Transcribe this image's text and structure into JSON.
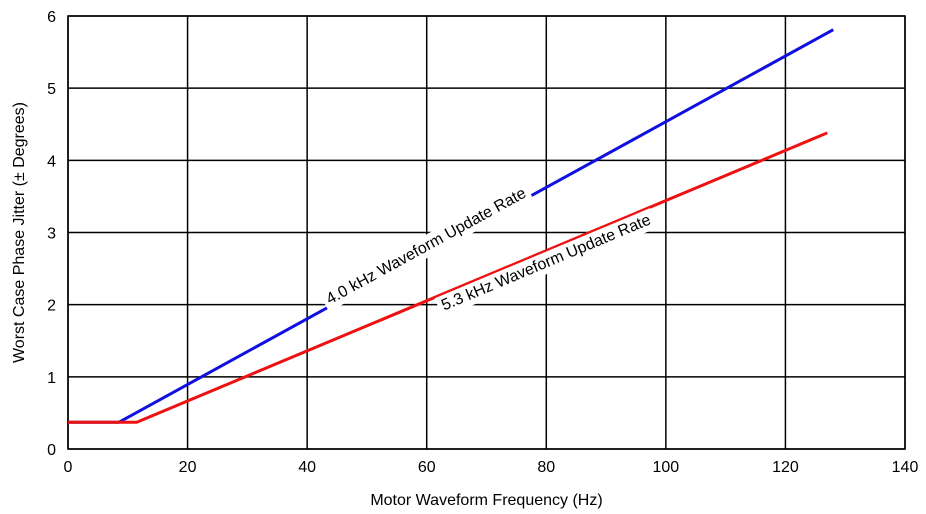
{
  "chart_data": {
    "type": "line",
    "title": "",
    "xlabel": "Motor Waveform Frequency (Hz)",
    "ylabel": "Worst Case Phase Jitter (± Degrees)",
    "xlim": [
      0,
      140
    ],
    "ylim": [
      0,
      6
    ],
    "xticks": [
      "0",
      "20",
      "40",
      "60",
      "80",
      "100",
      "120",
      "140"
    ],
    "yticks": [
      "0",
      "1",
      "2",
      "3",
      "4",
      "5",
      "6"
    ],
    "grid": true,
    "series": [
      {
        "name": "4.0 kHz Waveform Update Rate",
        "color": "#1010e0",
        "x": [
          0,
          8.5,
          128
        ],
        "y": [
          0.37,
          0.37,
          5.81
        ]
      },
      {
        "name": "5.3 kHz Waveform Update Rate",
        "color": "#ee1111",
        "x": [
          0,
          11.5,
          127
        ],
        "y": [
          0.37,
          0.37,
          4.38
        ]
      }
    ]
  }
}
